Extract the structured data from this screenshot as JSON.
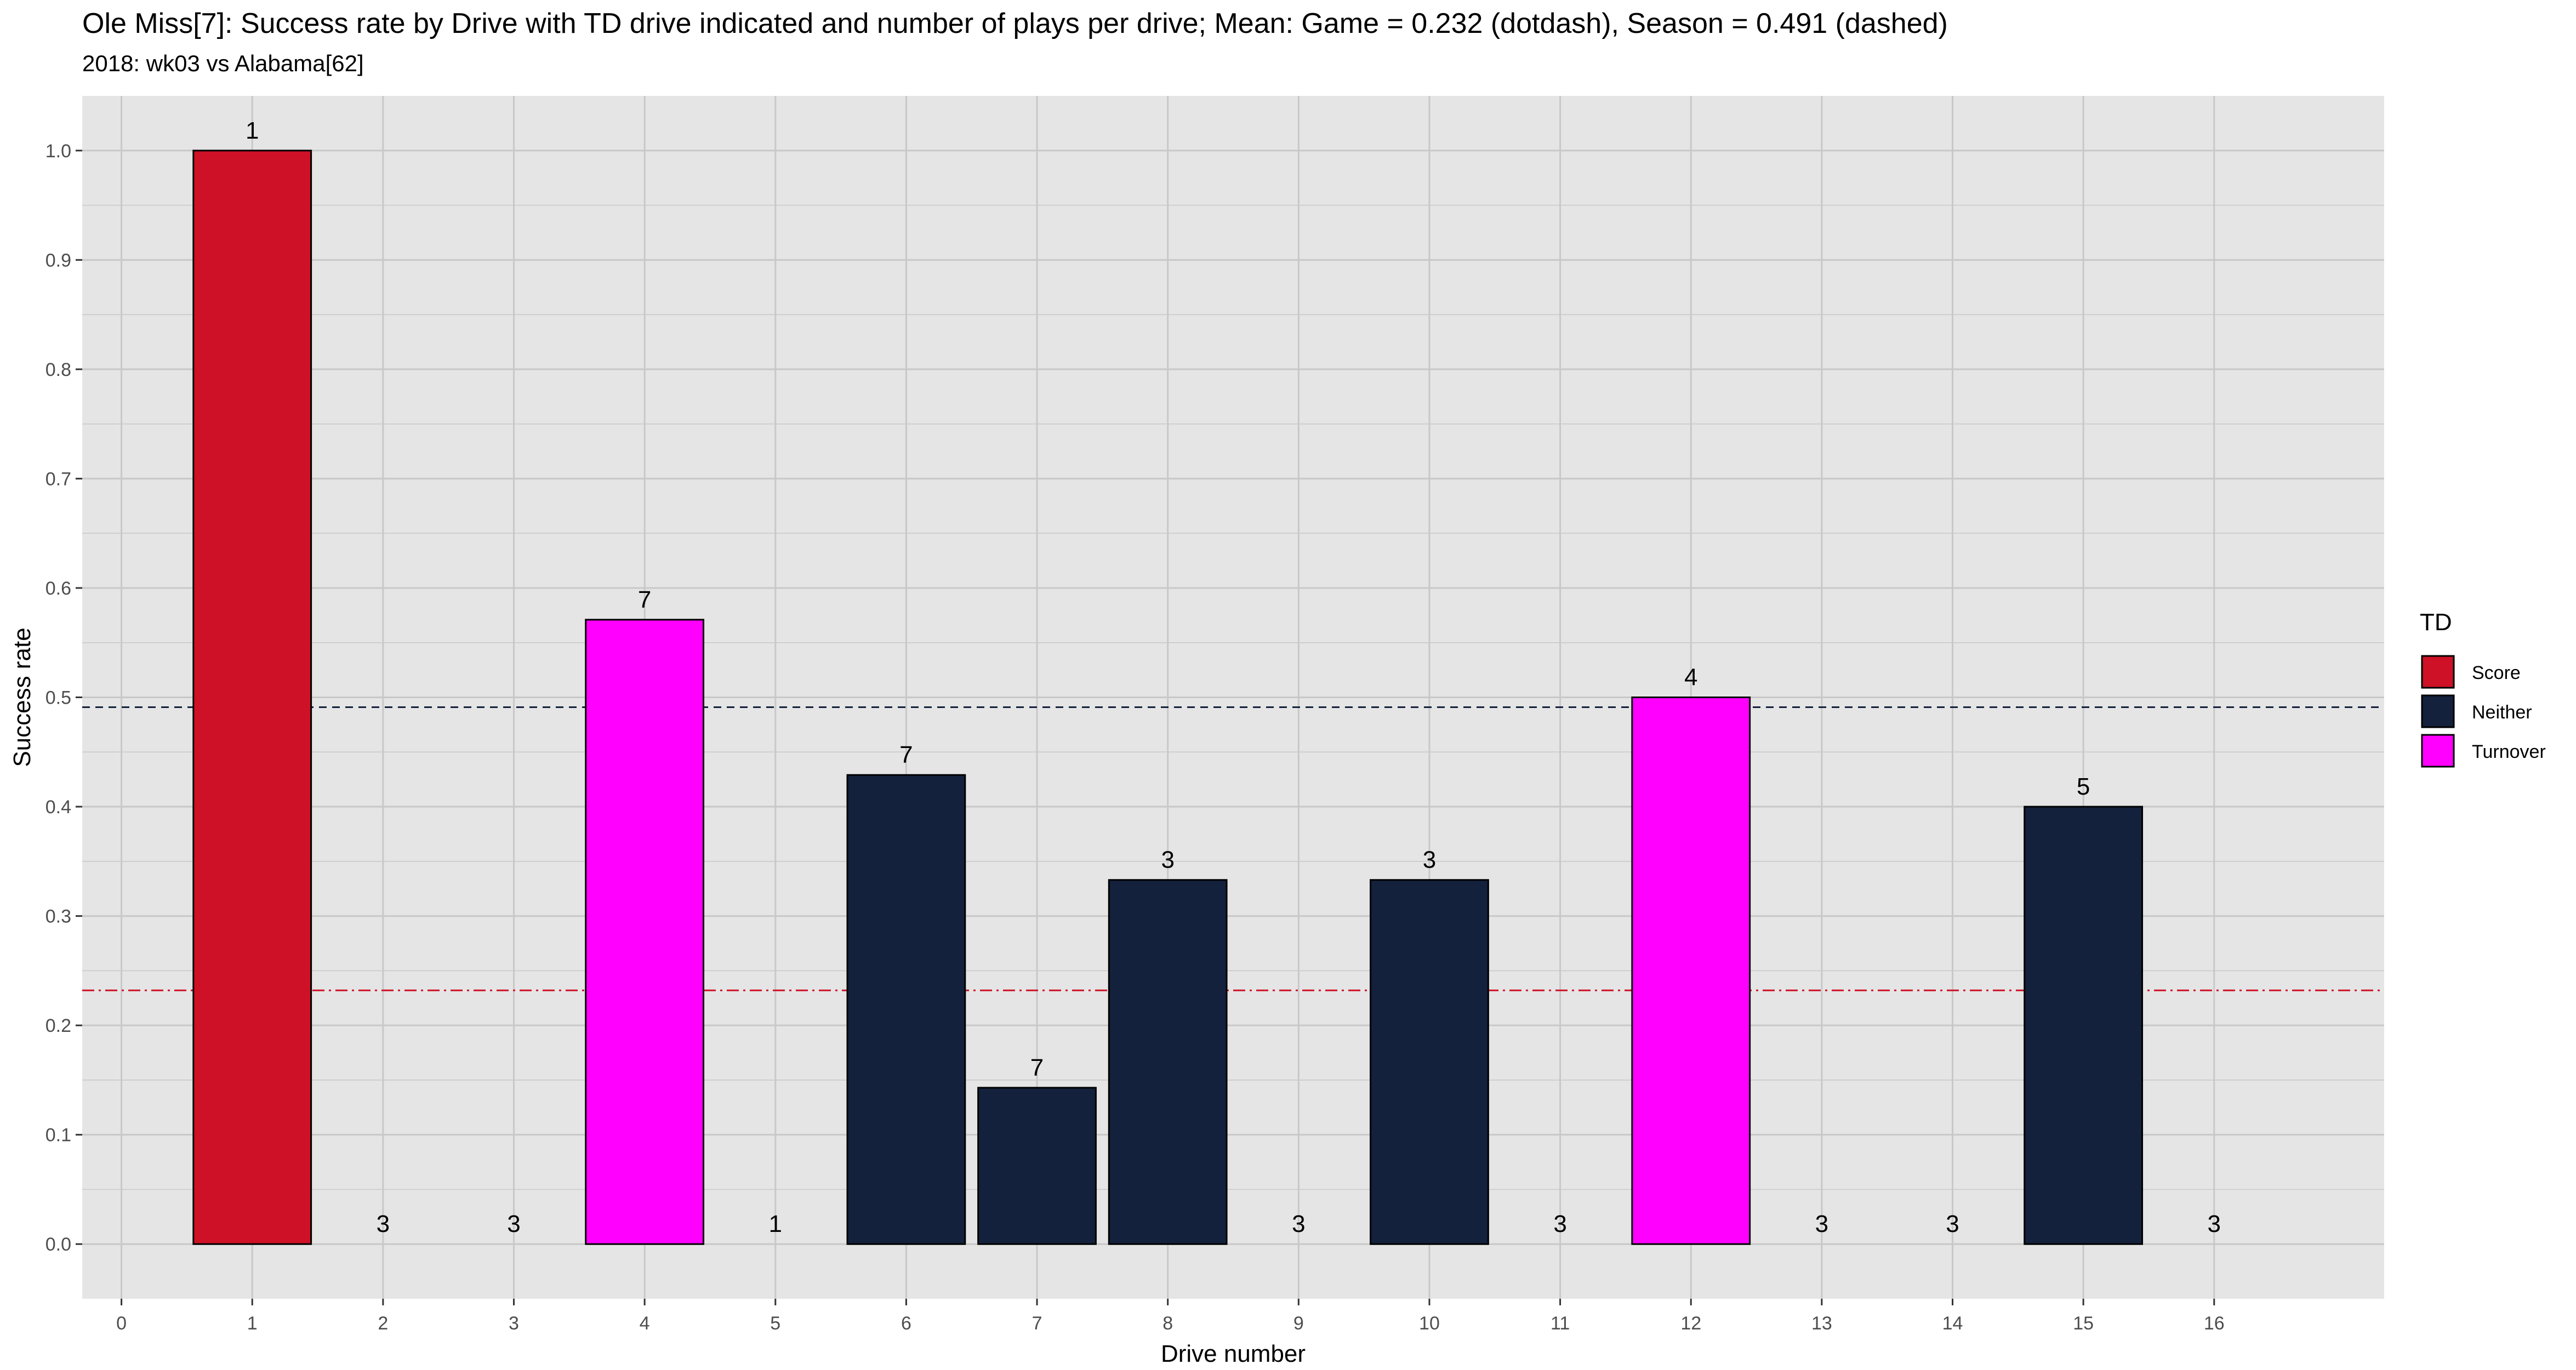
{
  "chart_data": {
    "type": "bar",
    "title": "Ole Miss[7]: Success rate by Drive with TD drive indicated and number of plays per drive; Mean: Game = 0.232 (dotdash), Season = 0.491 (dashed)",
    "subtitle": "2018: wk03 vs Alabama[62]",
    "xlabel": "Drive number",
    "ylabel": "Success rate",
    "xlim": [
      -0.3,
      17.3
    ],
    "ylim": [
      -0.05,
      1.05
    ],
    "x_ticks": [
      "0",
      "1",
      "2",
      "3",
      "4",
      "5",
      "6",
      "7",
      "8",
      "9",
      "10",
      "11",
      "12",
      "13",
      "14",
      "15",
      "16"
    ],
    "y_ticks": [
      "0.0",
      "0.1",
      "0.2",
      "0.3",
      "0.4",
      "0.5",
      "0.6",
      "0.7",
      "0.8",
      "0.9",
      "1.0"
    ],
    "grid": true,
    "legend": {
      "title": "TD",
      "placement": "right",
      "entries": [
        {
          "label": "Score",
          "color": "#CE1126"
        },
        {
          "label": "Neither",
          "color": "#14213D"
        },
        {
          "label": "Turnover",
          "color": "#FF00FF"
        }
      ]
    },
    "bars": [
      {
        "drive": 1,
        "value": 1.0,
        "plays": "1",
        "category": "Score"
      },
      {
        "drive": 2,
        "value": 0.0,
        "plays": "3",
        "category": "Neither"
      },
      {
        "drive": 3,
        "value": 0.0,
        "plays": "3",
        "category": "Neither"
      },
      {
        "drive": 4,
        "value": 0.571,
        "plays": "7",
        "category": "Turnover"
      },
      {
        "drive": 5,
        "value": 0.0,
        "plays": "1",
        "category": "Neither"
      },
      {
        "drive": 6,
        "value": 0.429,
        "plays": "7",
        "category": "Neither"
      },
      {
        "drive": 7,
        "value": 0.143,
        "plays": "7",
        "category": "Neither"
      },
      {
        "drive": 8,
        "value": 0.333,
        "plays": "3",
        "category": "Neither"
      },
      {
        "drive": 9,
        "value": 0.0,
        "plays": "3",
        "category": "Neither"
      },
      {
        "drive": 10,
        "value": 0.333,
        "plays": "3",
        "category": "Neither"
      },
      {
        "drive": 11,
        "value": 0.0,
        "plays": "3",
        "category": "Neither"
      },
      {
        "drive": 12,
        "value": 0.5,
        "plays": "4",
        "category": "Turnover"
      },
      {
        "drive": 13,
        "value": 0.0,
        "plays": "3",
        "category": "Neither"
      },
      {
        "drive": 14,
        "value": 0.0,
        "plays": "3",
        "category": "Neither"
      },
      {
        "drive": 15,
        "value": 0.4,
        "plays": "5",
        "category": "Neither"
      },
      {
        "drive": 16,
        "value": 0.0,
        "plays": "3",
        "category": "Neither"
      }
    ],
    "reference_lines": [
      {
        "value": 0.232,
        "style": "dotdash",
        "color": "#CE1126"
      },
      {
        "value": 0.491,
        "style": "dashed",
        "color": "#14213D"
      }
    ],
    "colors": {
      "panel_background": "#E5E5E5",
      "grid": "#C8C8C8",
      "axis_text": "#4D4D4D"
    }
  }
}
